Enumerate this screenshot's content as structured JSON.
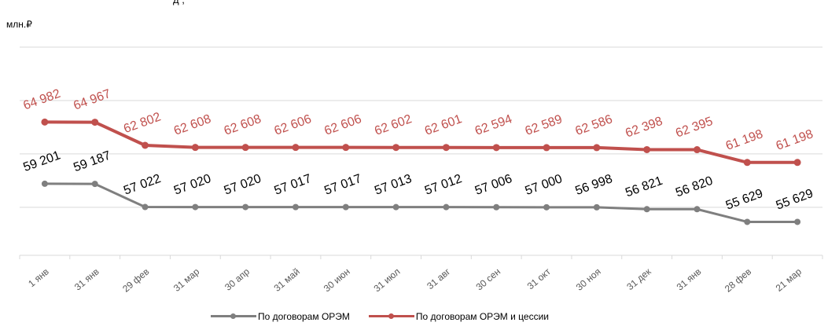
{
  "page_header": {
    "unit": "млн.₽",
    "top_text_fragment": "д                                            ,                                      "
  },
  "chart_data": {
    "type": "line",
    "categories": [
      "1 янв",
      "31 янв",
      "29 фев",
      "31 мар",
      "30 апр",
      "31 май",
      "30 июн",
      "31 июл",
      "31 авг",
      "30 сен",
      "31 окт",
      "30 ноя",
      "31 дек",
      "31 янв",
      "28 фев",
      "21 мар"
    ],
    "series": [
      {
        "name": "По договорам ОРЭМ",
        "color": "#7f7f7f",
        "values": [
          59201,
          59187,
          57022,
          57020,
          57020,
          57017,
          57017,
          57013,
          57012,
          57006,
          57000,
          56998,
          56821,
          56820,
          55629,
          55629
        ]
      },
      {
        "name": "По договорам ОРЭМ и цессии",
        "color": "#c0504d",
        "values": [
          64982,
          64967,
          62802,
          62608,
          62608,
          62606,
          62606,
          62602,
          62601,
          62594,
          62589,
          62586,
          62398,
          62395,
          61198,
          61198
        ]
      }
    ],
    "labels_text": [
      [
        "59 201",
        "59 187",
        "57 022",
        "57 020",
        "57 020",
        "57 017",
        "57 017",
        "57 013",
        "57 012",
        "57 006",
        "57 000",
        "56 998",
        "56 821",
        "56 820",
        "55 629",
        "55 629"
      ],
      [
        "64 982",
        "64 967",
        "62 802",
        "62 608",
        "62 608",
        "62 606",
        "62 606",
        "62 602",
        "62 601",
        "62 594",
        "62 589",
        "62 586",
        "62 398",
        "62 395",
        "61 198",
        "61 198"
      ]
    ],
    "ylim": [
      52500,
      72000
    ],
    "gridlines": [
      57000,
      62000,
      67000,
      72000
    ],
    "grid": true,
    "legend_position": "bottom",
    "xlabel": "",
    "ylabel": ""
  }
}
